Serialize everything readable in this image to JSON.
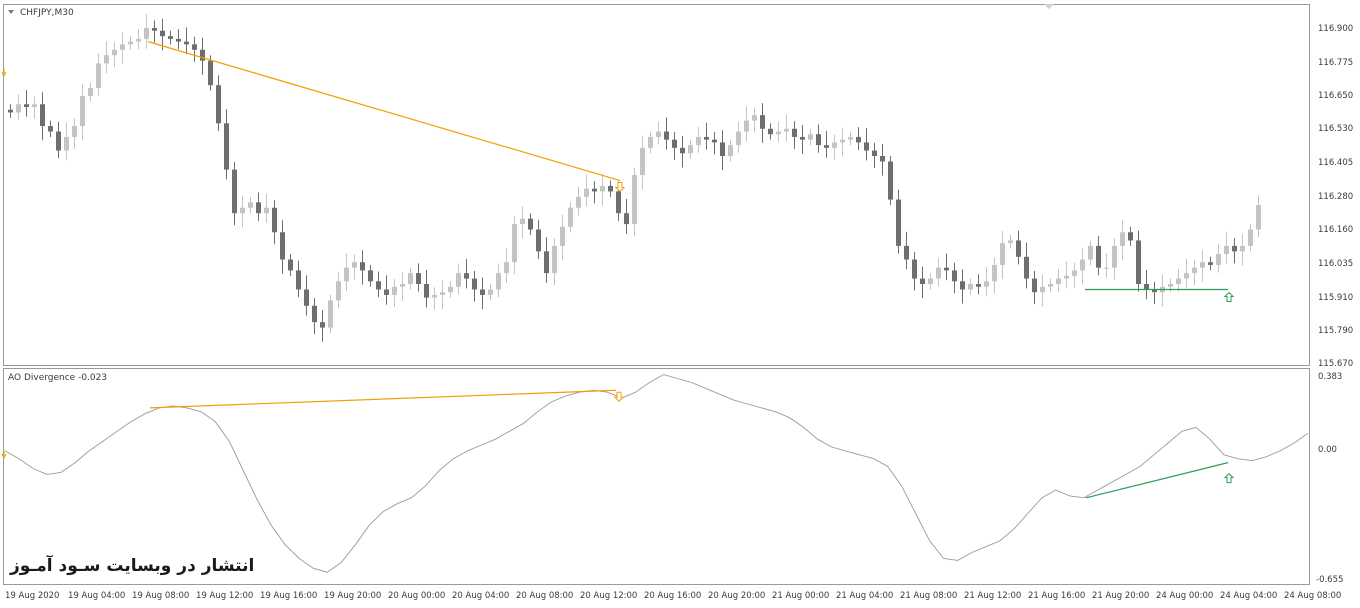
{
  "main_panel": {
    "title": "CHFJPY,M30",
    "price_labels": [
      "116.900",
      "116.775",
      "116.650",
      "116.530",
      "116.405",
      "116.280",
      "116.160",
      "116.035",
      "115.910",
      "115.790",
      "115.670"
    ]
  },
  "sub_panel": {
    "title": "AO Divergence -0.023",
    "value_labels": [
      "0.383",
      "0.00",
      "-0.655"
    ]
  },
  "time_labels": [
    "19 Aug 2020",
    "19 Aug 04:00",
    "19 Aug 08:00",
    "19 Aug 12:00",
    "19 Aug 16:00",
    "19 Aug 20:00",
    "20 Aug 00:00",
    "20 Aug 04:00",
    "20 Aug 08:00",
    "20 Aug 12:00",
    "20 Aug 16:00",
    "20 Aug 20:00",
    "21 Aug 00:00",
    "21 Aug 04:00",
    "21 Aug 08:00",
    "21 Aug 12:00",
    "21 Aug 16:00",
    "21 Aug 20:00",
    "24 Aug 00:00",
    "24 Aug 04:00",
    "24 Aug 08:00"
  ],
  "watermark": "انتشار در وبسایت سـود آمـوز",
  "colors": {
    "bull": "#c4c4c4",
    "bear": "#6e6e6e",
    "bearish_divergence": "#f0a000",
    "bullish_divergence": "#2e9a5a",
    "ao_line": "#9a9a9a",
    "frame": "#9a9a9a"
  },
  "chart_data": {
    "type": "candlestick",
    "symbol": "CHFJPY",
    "timeframe": "M30",
    "price_range": [
      115.67,
      116.96
    ],
    "closes": [
      116.59,
      116.62,
      116.61,
      116.62,
      116.54,
      116.52,
      116.45,
      116.5,
      116.54,
      116.65,
      116.68,
      116.77,
      116.8,
      116.82,
      116.84,
      116.85,
      116.86,
      116.9,
      116.89,
      116.87,
      116.86,
      116.85,
      116.84,
      116.82,
      116.78,
      116.69,
      116.55,
      116.38,
      116.22,
      116.24,
      116.26,
      116.22,
      116.24,
      116.15,
      116.05,
      116.01,
      115.94,
      115.88,
      115.82,
      115.8,
      115.9,
      115.97,
      116.02,
      116.04,
      116.01,
      115.97,
      115.94,
      115.92,
      115.95,
      115.96,
      116.0,
      115.96,
      115.91,
      115.92,
      115.93,
      115.95,
      116.0,
      115.98,
      115.94,
      115.92,
      115.94,
      116.0,
      116.04,
      116.18,
      116.2,
      116.16,
      116.08,
      116.0,
      116.1,
      116.17,
      116.24,
      116.28,
      116.31,
      116.3,
      116.32,
      116.3,
      116.22,
      116.18,
      116.36,
      116.46,
      116.5,
      116.52,
      116.49,
      116.46,
      116.44,
      116.47,
      116.5,
      116.49,
      116.48,
      116.43,
      116.47,
      116.52,
      116.56,
      116.58,
      116.53,
      116.51,
      116.52,
      116.53,
      116.5,
      116.49,
      116.51,
      116.47,
      116.46,
      116.48,
      116.49,
      116.5,
      116.48,
      116.45,
      116.43,
      116.41,
      116.27,
      116.1,
      116.05,
      115.98,
      115.96,
      115.98,
      116.02,
      116.01,
      115.97,
      115.94,
      115.96,
      115.95,
      115.97,
      116.03,
      116.11,
      116.12,
      116.06,
      115.98,
      115.93,
      115.95,
      115.96,
      115.98,
      115.99,
      116.01,
      116.05,
      116.1,
      116.02,
      116.02,
      116.1,
      116.15,
      116.12,
      115.96,
      115.94,
      115.93,
      115.95,
      115.96,
      115.98,
      116.0,
      116.02,
      116.04,
      116.03,
      116.07,
      116.1,
      116.08,
      116.1,
      116.16,
      116.25
    ]
  },
  "ao_data": {
    "range": [
      -0.655,
      0.383
    ],
    "values": [
      0.0,
      -0.04,
      -0.09,
      -0.12,
      -0.11,
      -0.06,
      0.0,
      0.05,
      0.1,
      0.15,
      0.19,
      0.22,
      0.23,
      0.22,
      0.2,
      0.15,
      0.05,
      -0.1,
      -0.25,
      -0.38,
      -0.48,
      -0.55,
      -0.6,
      -0.62,
      -0.57,
      -0.48,
      -0.38,
      -0.31,
      -0.27,
      -0.24,
      -0.18,
      -0.1,
      -0.04,
      0.0,
      0.03,
      0.06,
      0.1,
      0.14,
      0.2,
      0.25,
      0.28,
      0.3,
      0.31,
      0.3,
      0.27,
      0.3,
      0.35,
      0.39,
      0.37,
      0.35,
      0.32,
      0.29,
      0.26,
      0.24,
      0.22,
      0.2,
      0.17,
      0.12,
      0.06,
      0.02,
      0.0,
      -0.02,
      -0.04,
      -0.08,
      -0.18,
      -0.32,
      -0.46,
      -0.55,
      -0.56,
      -0.52,
      -0.49,
      -0.46,
      -0.4,
      -0.32,
      -0.24,
      -0.2,
      -0.23,
      -0.24,
      -0.2,
      -0.16,
      -0.12,
      -0.08,
      -0.02,
      0.04,
      0.1,
      0.12,
      0.06,
      -0.02,
      -0.04,
      -0.05,
      -0.03,
      0.0,
      0.04,
      0.09
    ]
  },
  "divergences": [
    {
      "type": "bearish",
      "price_start": 116.85,
      "price_end": 116.34,
      "ao_start": 0.22,
      "ao_end": 0.31
    },
    {
      "type": "bullish",
      "price_start": 115.94,
      "price_end": 115.94,
      "ao_start": -0.24,
      "ao_end": -0.06
    }
  ]
}
